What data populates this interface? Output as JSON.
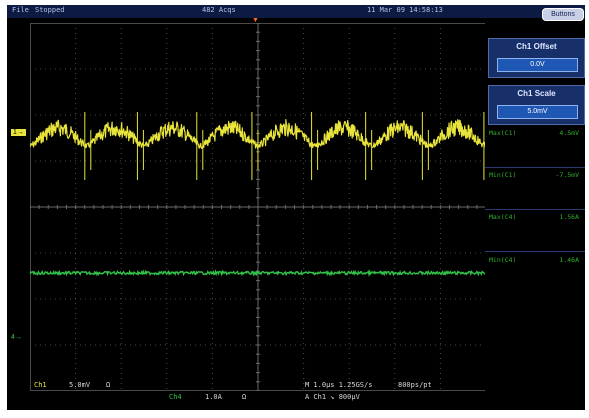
{
  "topbar": {
    "menu_file": "File",
    "acq_state": "Stopped",
    "acq_count": "482 Acqs",
    "datetime": "11 Mar 09 14:58:13"
  },
  "buttons_label": "Buttons",
  "panel": {
    "offset": {
      "label": "Ch1 Offset",
      "value": "0.0V"
    },
    "scale": {
      "label": "Ch1 Scale",
      "value": "5.0mV"
    }
  },
  "measurements": [
    {
      "name": "Max(C1)",
      "value": "4.5mV"
    },
    {
      "name": "Min(C1)",
      "value": "-7.5mV"
    },
    {
      "name": "Max(C4)",
      "value": "1.56A"
    },
    {
      "name": "Min(C4)",
      "value": "1.46A"
    }
  ],
  "markers": {
    "ch1": "1",
    "ch4": "4",
    "trigger": "T"
  },
  "readout": {
    "ch1_label": "Ch1",
    "ch1_scale": "5.0mV",
    "ch1_coupling": "Ω",
    "ch4_label": "Ch4",
    "ch4_scale": "1.0A",
    "ch4_coupling": "Ω",
    "timebase": "M 1.0μs 1.25GS/s",
    "points": "800ps/pt",
    "trigger": "A Ch1 ↘ 800μV"
  },
  "colors": {
    "ch1": "#e8e43c",
    "ch4": "#33c24a",
    "background": "#000000",
    "graticule": "#4a4a4a"
  }
}
